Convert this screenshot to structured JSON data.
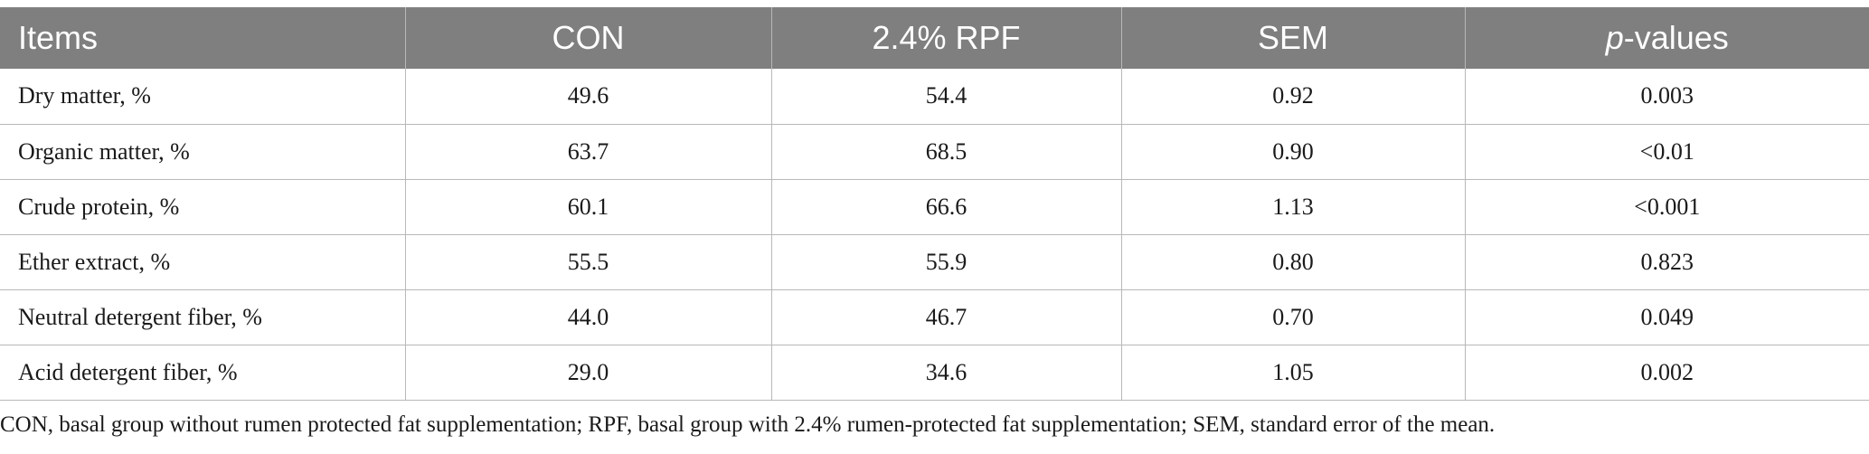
{
  "table": {
    "headers": [
      {
        "text": "Items",
        "italic_prefix": ""
      },
      {
        "text": "CON",
        "italic_prefix": ""
      },
      {
        "text": "2.4% RPF",
        "italic_prefix": ""
      },
      {
        "text": "SEM",
        "italic_prefix": ""
      },
      {
        "text": "-values",
        "italic_prefix": "p"
      }
    ],
    "rows": [
      [
        "Dry matter, %",
        "49.6",
        "54.4",
        "0.92",
        "0.003"
      ],
      [
        "Organic matter, %",
        "63.7",
        "68.5",
        "0.90",
        "<0.01"
      ],
      [
        "Crude protein, %",
        "60.1",
        "66.6",
        "1.13",
        "<0.001"
      ],
      [
        "Ether extract, %",
        "55.5",
        "55.9",
        "0.80",
        "0.823"
      ],
      [
        "Neutral detergent fiber, %",
        "44.0",
        "46.7",
        "0.70",
        "0.049"
      ],
      [
        "Acid detergent fiber, %",
        "29.0",
        "34.6",
        "1.05",
        "0.002"
      ]
    ]
  },
  "footnote": "CON, basal group without rumen protected fat supplementation; RPF, basal group with 2.4% rumen-protected fat supplementation; SEM, standard error of the mean.",
  "colors": {
    "header_bg": "#7f7f7f",
    "header_text": "#ffffff",
    "grid": "#b8b8b8"
  }
}
